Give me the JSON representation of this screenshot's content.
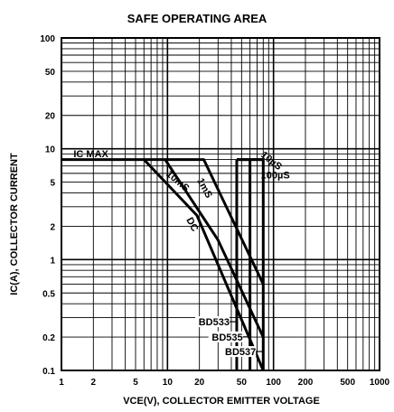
{
  "chart_data": {
    "type": "line",
    "title": "SAFE OPERATING AREA",
    "xlabel": "VCE(V), COLLECTOR EMITTER VOLTAGE",
    "ylabel": "IC(A), COLLECTOR CURRENT",
    "xscale": "log",
    "yscale": "log",
    "xlim": [
      1,
      1000
    ],
    "ylim": [
      0.1,
      100
    ],
    "grid": true,
    "xticks": [
      "1",
      "2",
      "5",
      "10",
      "20",
      "50",
      "100",
      "200",
      "500",
      "1000"
    ],
    "yticks": [
      "0.1",
      "0.2",
      "0.5",
      "1",
      "2",
      "5",
      "10",
      "20",
      "50",
      "100"
    ],
    "xtick_values": [
      1,
      2,
      5,
      10,
      20,
      50,
      100,
      200,
      500,
      1000
    ],
    "ytick_values": [
      0.1,
      0.2,
      0.5,
      1,
      2,
      5,
      10,
      20,
      50,
      100
    ],
    "series": [
      {
        "name": "DC",
        "x": [
          1,
          6,
          19,
          80
        ],
        "y": [
          8,
          8,
          2.5,
          0.1
        ]
      },
      {
        "name": "10mS",
        "x": [
          6,
          9.5,
          30,
          80
        ],
        "y": [
          8,
          8,
          1.5,
          0.2
        ]
      },
      {
        "name": "1mS",
        "x": [
          9.5,
          22,
          80
        ],
        "y": [
          8,
          8,
          0.6
        ]
      },
      {
        "name": "100µS",
        "x": [
          45,
          80
        ],
        "y": [
          8,
          8
        ]
      },
      {
        "name": "10µS",
        "x": [
          45,
          80
        ],
        "y": [
          8,
          8
        ]
      }
    ],
    "voltage_limits": [
      {
        "name": "BD533",
        "x": 45,
        "y": [
          0.1,
          8
        ]
      },
      {
        "name": "BD535",
        "x": 60,
        "y": [
          0.1,
          8
        ]
      },
      {
        "name": "BD537",
        "x": 80,
        "y": [
          0.1,
          8
        ]
      }
    ],
    "annotations": [
      {
        "key": "icmax",
        "text": "IC MAX",
        "x": 1.3,
        "y": 8.4
      },
      {
        "key": "dc",
        "text": "DC",
        "x": 15,
        "y": 2.3
      },
      {
        "key": "ms10",
        "text": "10mS",
        "x": 9.6,
        "y": 5.8
      },
      {
        "key": "ms1",
        "text": "1mS",
        "x": 19,
        "y": 5.2
      },
      {
        "key": "us100",
        "text": "100µS",
        "x": 76,
        "y": 5.4
      },
      {
        "key": "us10",
        "text": "10µS",
        "x": 75,
        "y": 8.6
      }
    ]
  }
}
